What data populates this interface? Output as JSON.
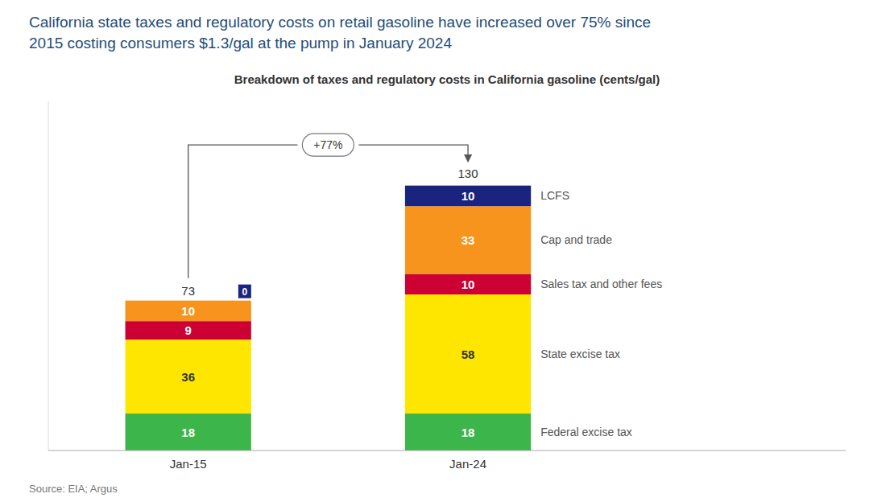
{
  "chart_data": {
    "type": "bar",
    "stacked": true,
    "title": [
      "California state taxes and regulatory costs on retail gasoline have increased over 75% since",
      "2015 costing consumers $1.3/gal at the pump in January 2024"
    ],
    "subtitle": "Breakdown of taxes and regulatory costs in California gasoline (cents/gal)",
    "source": "Source: EIA; Argus",
    "annotation": "+77%",
    "categories": [
      "Jan-15",
      "Jan-24"
    ],
    "series": [
      {
        "name": "Federal excise tax",
        "color": "#3cb54a",
        "values": [
          18,
          18
        ]
      },
      {
        "name": "State excise tax",
        "color": "#ffe600",
        "values": [
          36,
          58
        ]
      },
      {
        "name": "Sales tax and other fees",
        "color": "#cc0033",
        "values": [
          9,
          10
        ]
      },
      {
        "name": "Cap and trade",
        "color": "#f7941d",
        "values": [
          10,
          33
        ]
      },
      {
        "name": "LCFS",
        "color": "#1a237e",
        "values": [
          0,
          10
        ]
      }
    ],
    "totals": [
      73,
      130
    ],
    "ylim": [
      0,
      170
    ],
    "data_labels": true,
    "tick_labels": "x",
    "grid": false
  }
}
